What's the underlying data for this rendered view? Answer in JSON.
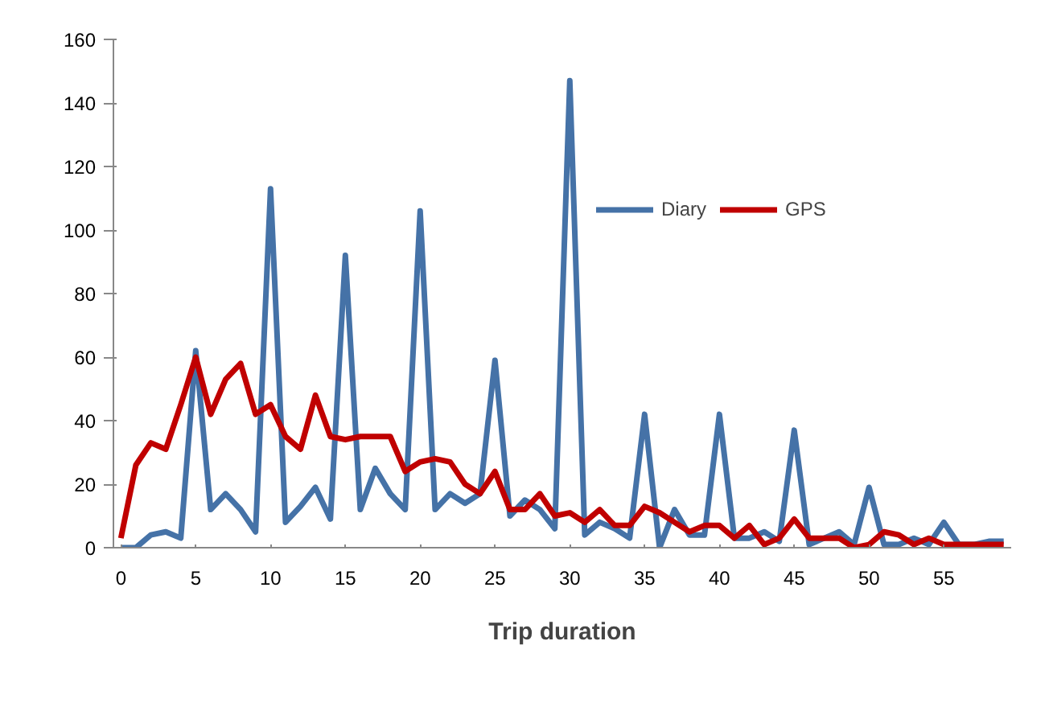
{
  "chart_data": {
    "type": "line",
    "xlabel": "Trip duration",
    "x": [
      0,
      1,
      2,
      3,
      4,
      5,
      6,
      7,
      8,
      9,
      10,
      11,
      12,
      13,
      14,
      15,
      16,
      17,
      18,
      19,
      20,
      21,
      22,
      23,
      24,
      25,
      26,
      27,
      28,
      29,
      30,
      31,
      32,
      33,
      34,
      35,
      36,
      37,
      38,
      39,
      40,
      41,
      42,
      43,
      44,
      45,
      46,
      47,
      48,
      49,
      50,
      51,
      52,
      53,
      54,
      55,
      56,
      57,
      58,
      59
    ],
    "series": [
      {
        "name": "Diary",
        "color": "#4572a7",
        "values": [
          0,
          0,
          4,
          5,
          3,
          62,
          12,
          17,
          12,
          5,
          113,
          8,
          13,
          19,
          9,
          92,
          12,
          25,
          17,
          12,
          106,
          12,
          17,
          14,
          17,
          59,
          10,
          15,
          12,
          6,
          147,
          4,
          8,
          6,
          3,
          42,
          0,
          12,
          4,
          4,
          42,
          3,
          3,
          5,
          2,
          37,
          1,
          3,
          5,
          1,
          19,
          1,
          1,
          3,
          1,
          8,
          1,
          1,
          2,
          2
        ]
      },
      {
        "name": "GPS",
        "color": "#c00000",
        "values": [
          3,
          26,
          33,
          31,
          45,
          60,
          42,
          53,
          58,
          42,
          45,
          35,
          31,
          48,
          35,
          34,
          35,
          35,
          35,
          24,
          27,
          28,
          27,
          20,
          17,
          24,
          12,
          12,
          17,
          10,
          11,
          8,
          12,
          7,
          7,
          13,
          11,
          8,
          5,
          7,
          7,
          3,
          7,
          1,
          3,
          9,
          3,
          3,
          3,
          0,
          1,
          5,
          4,
          1,
          3,
          1,
          1,
          1,
          1,
          1
        ]
      }
    ],
    "xlim": [
      -0.5,
      59.5
    ],
    "xticks": [
      0,
      5,
      10,
      15,
      20,
      25,
      30,
      35,
      40,
      45,
      50,
      55
    ],
    "ylim": [
      0,
      160
    ],
    "yticks": [
      0,
      20,
      40,
      60,
      80,
      100,
      120,
      140,
      160
    ],
    "grid": false,
    "legend": "top right",
    "marker": "none",
    "line_style": "solid"
  }
}
